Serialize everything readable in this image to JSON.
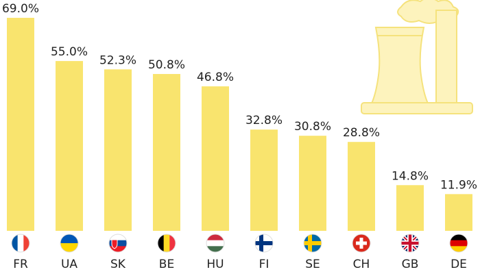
{
  "chart_data": {
    "type": "bar",
    "categories": [
      "FR",
      "UA",
      "SK",
      "BE",
      "HU",
      "FI",
      "SE",
      "CH",
      "GB",
      "DE"
    ],
    "values": [
      69.0,
      55.0,
      52.3,
      50.8,
      46.8,
      32.8,
      30.8,
      28.8,
      14.8,
      11.9
    ],
    "value_labels": [
      "69.0%",
      "55.0%",
      "52.3%",
      "50.8%",
      "46.8%",
      "32.8%",
      "30.8%",
      "28.8%",
      "14.8%",
      "11.9%"
    ],
    "color": "#f9e46e"
  }
}
